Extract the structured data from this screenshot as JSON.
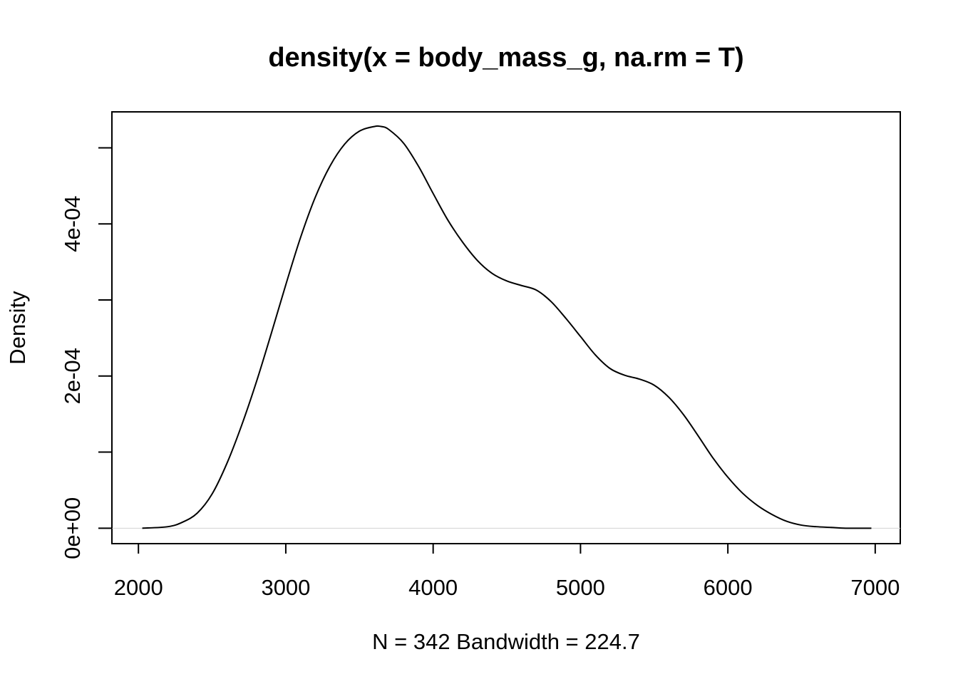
{
  "chart_data": {
    "type": "line",
    "title": "density(x = body_mass_g, na.rm = T)",
    "xlabel": "N = 342   Bandwidth = 224.7",
    "ylabel": "Density",
    "xlim": [
      1820,
      7170
    ],
    "ylim": [
      -2.03e-05,
      0.0005473
    ],
    "grid": false,
    "x_ticks": [
      {
        "value": 2000,
        "label": "2000"
      },
      {
        "value": 3000,
        "label": "3000"
      },
      {
        "value": 4000,
        "label": "4000"
      },
      {
        "value": 5000,
        "label": "5000"
      },
      {
        "value": 6000,
        "label": "6000"
      },
      {
        "value": 7000,
        "label": "7000"
      }
    ],
    "y_ticks": [
      {
        "value": 0.0,
        "label": "0e+00"
      },
      {
        "value": 0.0001,
        "label": ""
      },
      {
        "value": 0.0002,
        "label": "2e-04"
      },
      {
        "value": 0.0003,
        "label": ""
      },
      {
        "value": 0.0004,
        "label": "4e-04"
      },
      {
        "value": 0.0005,
        "label": ""
      }
    ],
    "baseline": {
      "y": 0,
      "color": "#d3d3d3"
    },
    "series": [
      {
        "color": "#000000",
        "x": [
          2026,
          2200,
          2300,
          2400,
          2500,
          2600,
          2700,
          2800,
          2900,
          3000,
          3100,
          3200,
          3300,
          3400,
          3500,
          3600,
          3650,
          3700,
          3800,
          3900,
          4000,
          4100,
          4200,
          4300,
          4400,
          4500,
          4600,
          4700,
          4800,
          4900,
          5000,
          5100,
          5200,
          5300,
          5400,
          5500,
          5600,
          5700,
          5800,
          5900,
          6000,
          6100,
          6200,
          6300,
          6400,
          6500,
          6600,
          6700,
          6800,
          6974
        ],
        "y": [
          0.0,
          2e-06,
          8e-06,
          2e-05,
          4.5e-05,
          8.5e-05,
          0.000135,
          0.000192,
          0.000255,
          0.00032,
          0.000382,
          0.000435,
          0.000476,
          0.000505,
          0.000522,
          0.000528,
          0.000528,
          0.000524,
          0.000506,
          0.000476,
          0.00044,
          0.000405,
          0.000376,
          0.000352,
          0.000335,
          0.000325,
          0.000319,
          0.000313,
          0.000298,
          0.000276,
          0.000252,
          0.000228,
          0.00021,
          0.000201,
          0.000196,
          0.000188,
          0.000172,
          0.000149,
          0.000121,
          9.2e-05,
          6.7e-05,
          4.6e-05,
          3e-05,
          1.8e-05,
          9e-06,
          4e-06,
          2e-06,
          1e-06,
          0.0,
          0.0
        ]
      }
    ]
  }
}
